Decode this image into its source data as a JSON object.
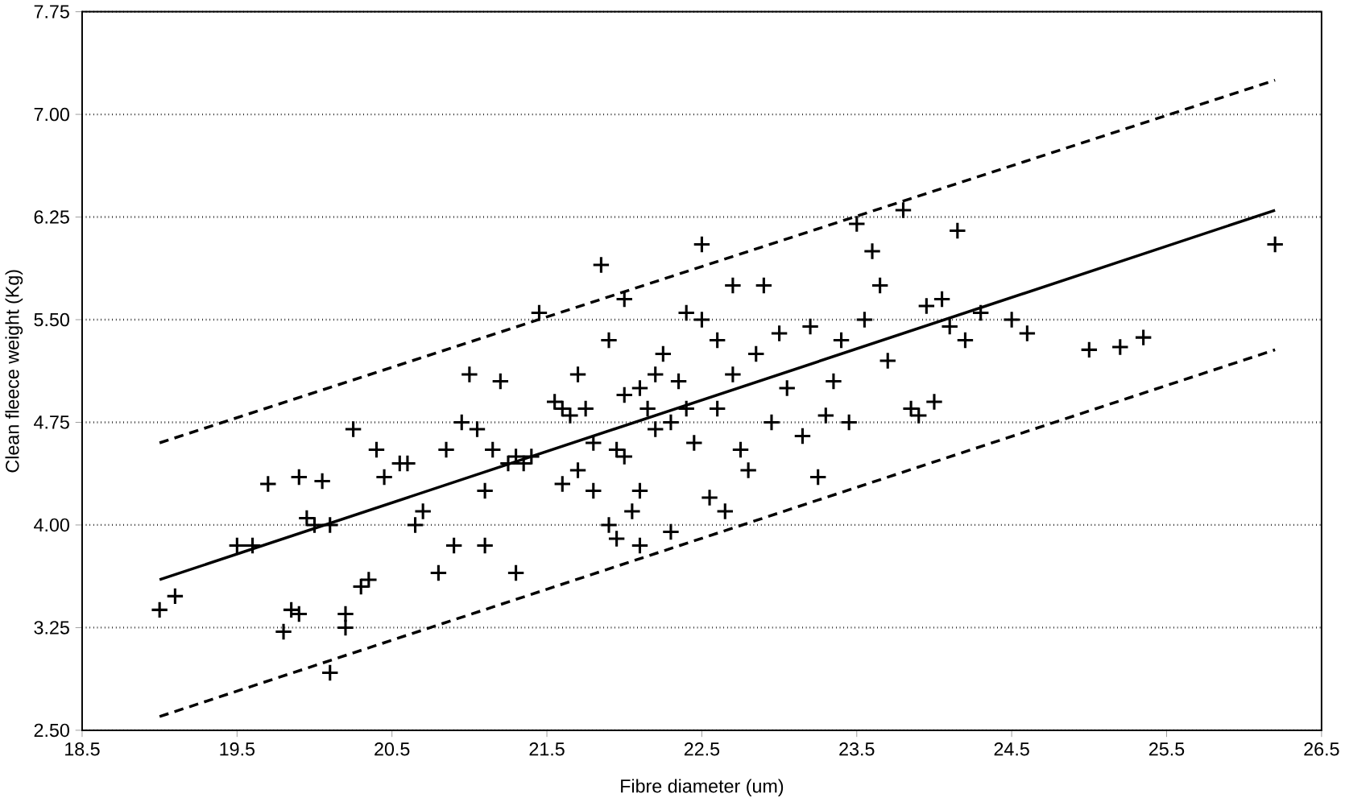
{
  "chart_data": {
    "type": "scatter",
    "xlabel": "Fibre diameter (um)",
    "ylabel": "Clean fleece weight (Kg)",
    "xlim": [
      18.5,
      26.5
    ],
    "xticks": [
      18.5,
      19.5,
      20.5,
      21.5,
      22.5,
      23.5,
      24.5,
      25.5,
      26.5
    ],
    "ylim": [
      2.5,
      7.75
    ],
    "yticks": [
      {
        "value": 2.5,
        "label": "2.50"
      },
      {
        "value": 3.25,
        "label": "3.25"
      },
      {
        "value": 4.0,
        "label": "4.00"
      },
      {
        "value": 4.75,
        "label": "4.75"
      },
      {
        "value": 5.5,
        "label": "5.50"
      },
      {
        "value": 6.25,
        "label": "6.25"
      },
      {
        "value": 7.0,
        "label": "7.00"
      },
      {
        "value": 7.75,
        "label": "7.75"
      }
    ],
    "grid": "y",
    "series": [
      {
        "color": "#000000",
        "marker": "cross",
        "x": [
          19.0,
          19.1,
          19.5,
          19.6,
          19.7,
          19.8,
          19.85,
          19.9,
          19.95,
          20.0,
          20.05,
          20.1,
          20.2,
          20.2,
          20.3,
          20.35,
          20.25,
          20.4,
          20.45,
          20.6,
          20.65,
          20.7,
          20.8,
          20.85,
          20.9,
          20.95,
          21.0,
          21.05,
          21.1,
          21.1,
          21.15,
          21.2,
          21.25,
          21.3,
          21.3,
          21.35,
          21.4,
          21.45,
          21.6,
          21.65,
          21.7,
          21.75,
          21.8,
          21.85,
          21.9,
          21.95,
          22.0,
          22.0,
          22.05,
          22.1,
          22.15,
          22.2,
          22.25,
          22.3,
          22.35,
          22.4,
          22.45,
          22.5,
          22.5,
          22.55,
          22.6,
          22.65,
          22.7,
          22.75,
          22.8,
          22.85,
          22.9,
          22.95,
          23.0,
          23.05,
          23.15,
          23.2,
          23.25,
          23.3,
          23.35,
          23.4,
          23.45,
          23.5,
          23.55,
          23.6,
          23.65,
          23.7,
          23.8,
          23.85,
          23.9,
          23.95,
          24.0,
          24.05,
          24.1,
          24.15,
          24.2,
          24.3,
          24.5,
          24.6,
          25.0,
          25.2,
          25.35,
          26.2,
          21.55,
          21.7,
          21.8,
          21.9,
          22.0,
          22.1,
          22.2,
          22.3,
          22.4,
          22.6,
          22.7,
          22.1,
          21.95,
          20.55,
          20.1,
          19.9,
          21.6
        ],
        "values": [
          3.38,
          3.48,
          3.85,
          3.85,
          4.3,
          3.22,
          3.38,
          3.35,
          4.05,
          4.0,
          4.32,
          2.92,
          3.35,
          3.25,
          3.55,
          3.6,
          4.7,
          4.55,
          4.35,
          4.45,
          4.0,
          4.1,
          3.65,
          4.55,
          3.85,
          4.75,
          5.1,
          4.7,
          4.25,
          3.85,
          4.55,
          5.05,
          4.45,
          4.5,
          3.65,
          4.45,
          4.5,
          5.55,
          4.3,
          4.8,
          4.4,
          4.85,
          4.25,
          5.9,
          4.0,
          3.9,
          5.65,
          4.95,
          4.1,
          5.0,
          4.85,
          4.7,
          5.25,
          3.95,
          5.05,
          4.85,
          4.6,
          6.05,
          5.5,
          4.2,
          5.35,
          4.1,
          5.1,
          4.55,
          4.4,
          5.25,
          5.75,
          4.75,
          5.4,
          5.0,
          4.65,
          5.45,
          4.35,
          4.8,
          5.05,
          5.35,
          4.75,
          6.2,
          5.5,
          6.0,
          5.75,
          5.2,
          6.3,
          4.85,
          4.8,
          5.6,
          4.9,
          5.65,
          5.45,
          6.15,
          5.35,
          5.55,
          5.5,
          5.4,
          5.28,
          5.3,
          5.37,
          6.05,
          4.9,
          5.1,
          4.6,
          5.35,
          4.5,
          4.25,
          5.1,
          4.75,
          5.55,
          4.85,
          5.75,
          3.85,
          4.55,
          4.45,
          4.0,
          4.35,
          4.85
        ]
      },
      {
        "type": "line",
        "color": "#000000",
        "marker": "none",
        "line_style": "solid",
        "x": [
          19.0,
          26.2
        ],
        "values": [
          3.6,
          6.3
        ]
      },
      {
        "type": "line",
        "color": "#000000",
        "marker": "none",
        "line_style": "dashed",
        "x": [
          19.0,
          26.2
        ],
        "values": [
          4.6,
          7.25
        ]
      },
      {
        "type": "line",
        "color": "#000000",
        "marker": "none",
        "line_style": "dashed",
        "x": [
          19.0,
          26.2
        ],
        "values": [
          2.6,
          5.28
        ]
      }
    ]
  }
}
